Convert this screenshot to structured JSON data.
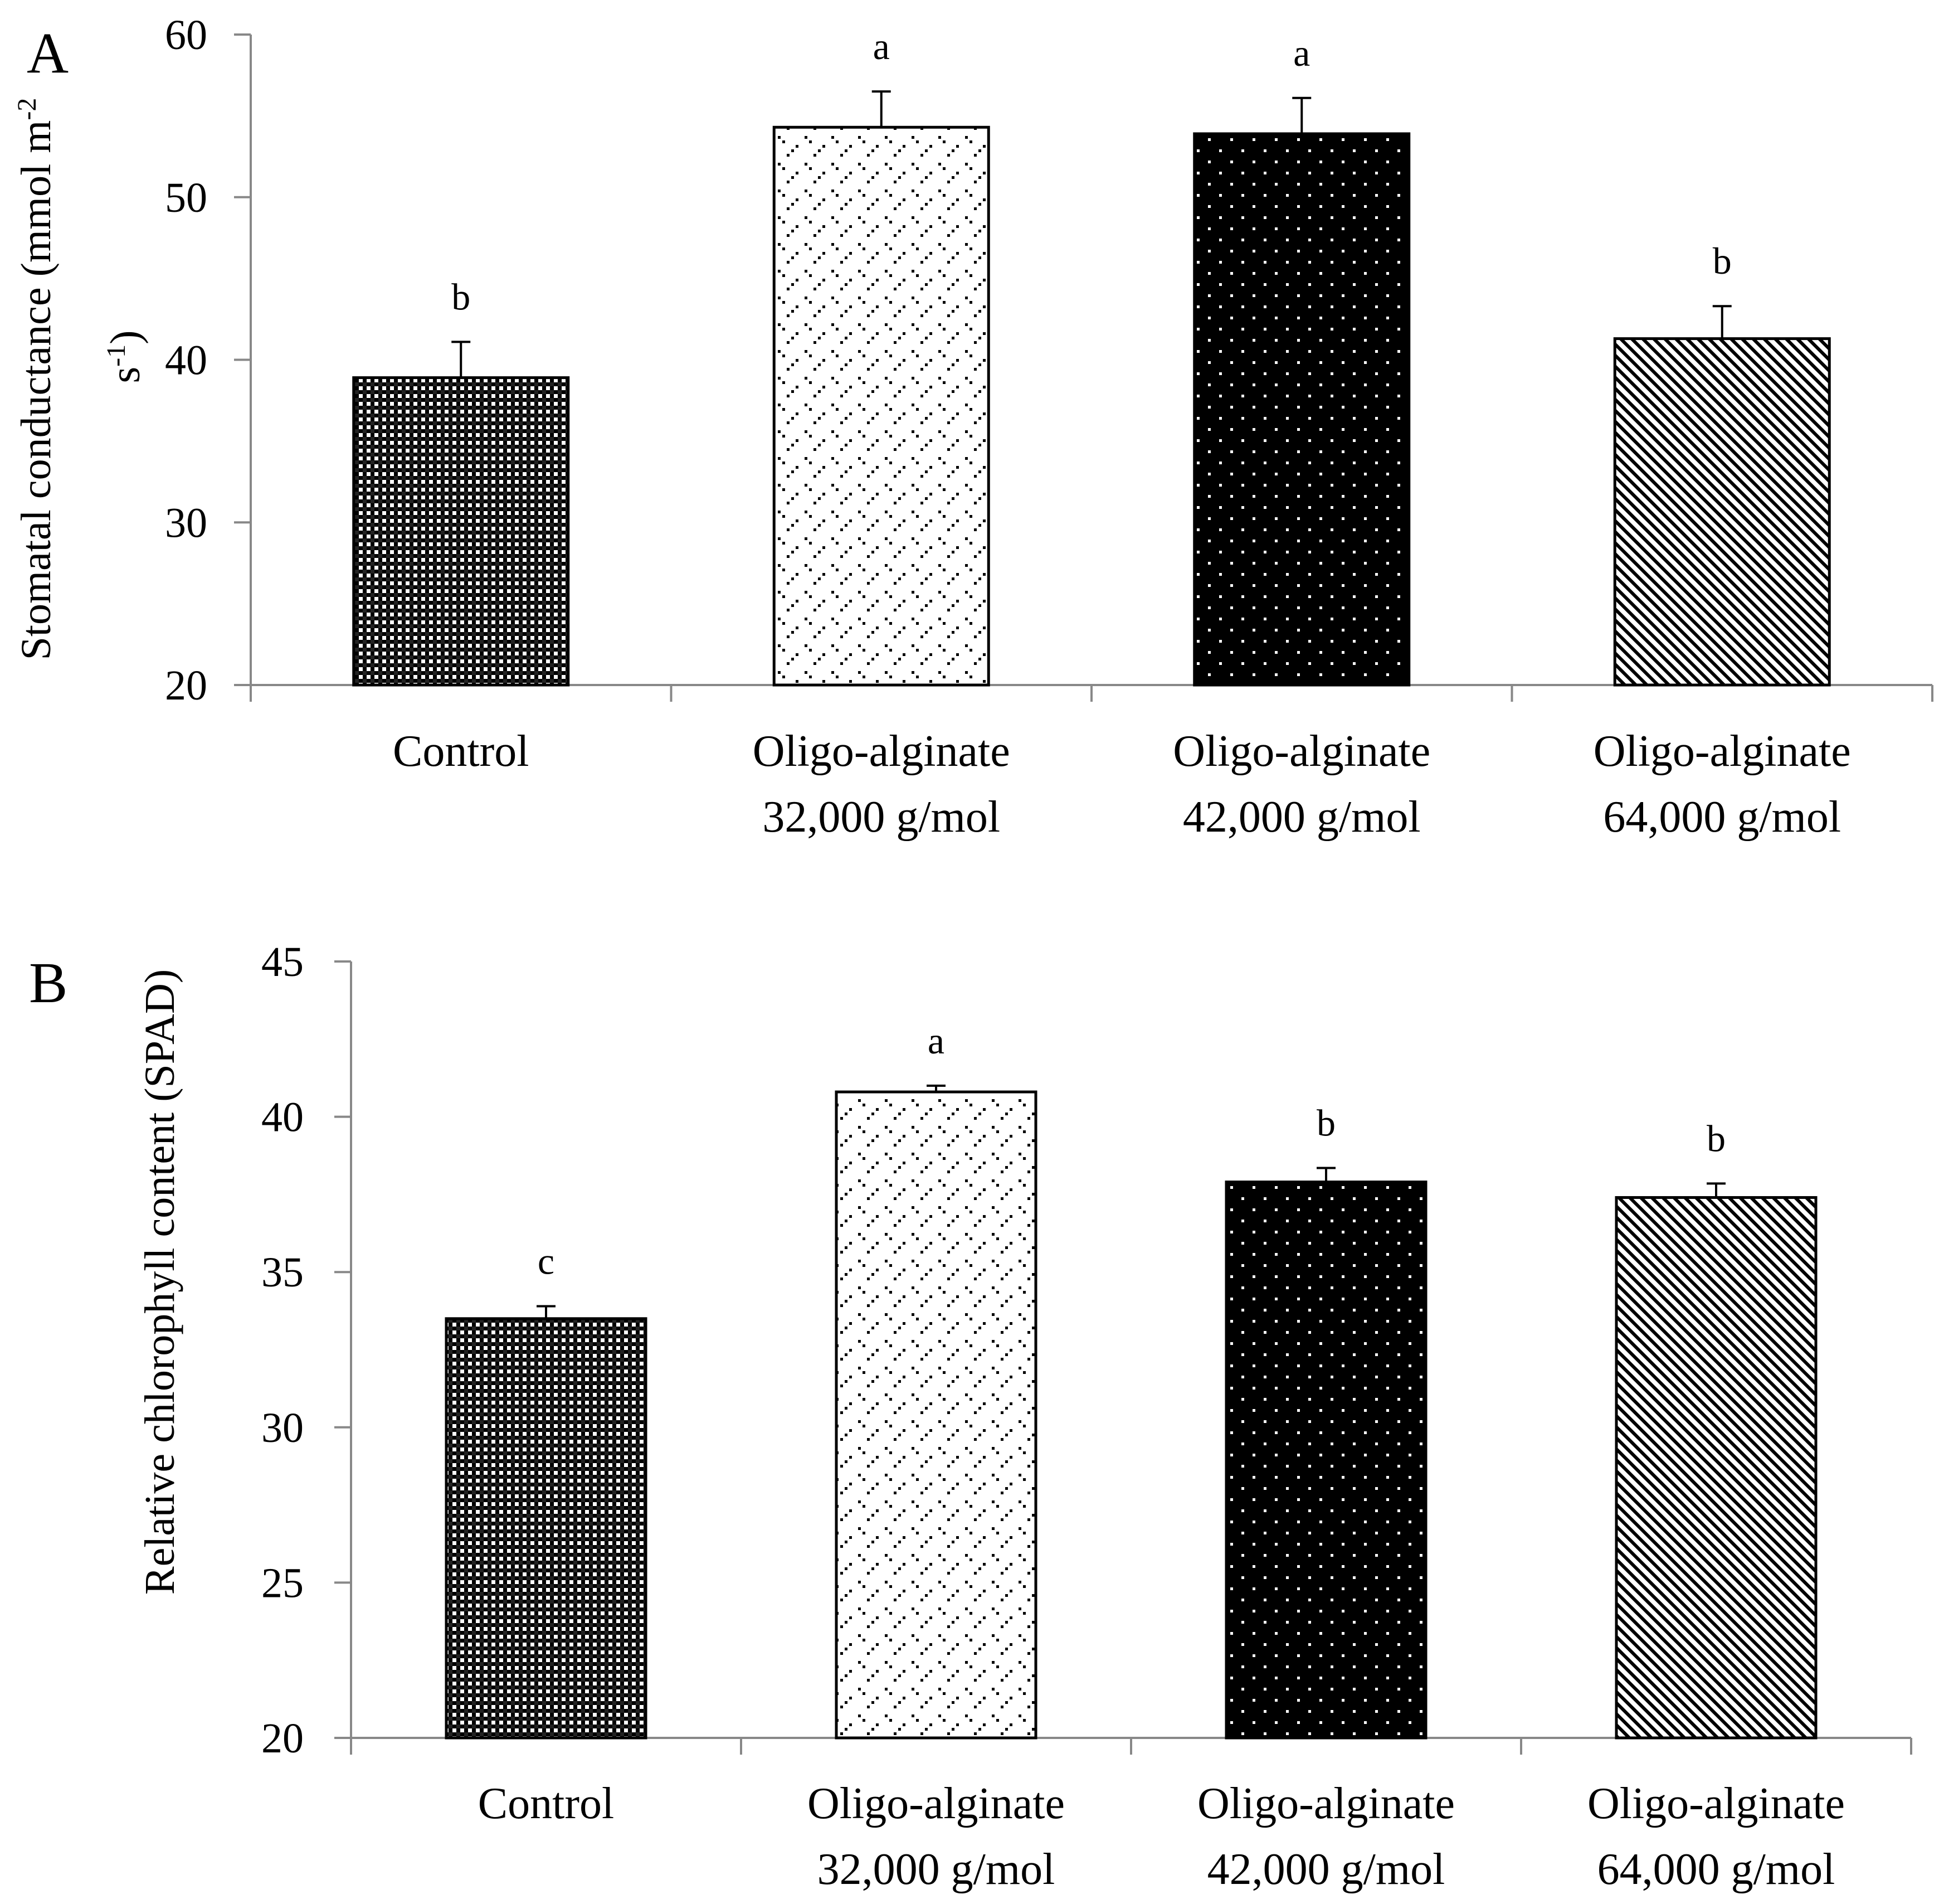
{
  "chart_data": [
    {
      "panel_label": "A",
      "type": "bar",
      "categories": [
        [
          "Control"
        ],
        [
          "Oligo-alginate",
          "32,000 g/mol"
        ],
        [
          "Oligo-alginate",
          "42,000 g/mol"
        ],
        [
          "Oligo-alginate",
          "64,000 g/mol"
        ]
      ],
      "values": [
        38.9,
        54.3,
        53.9,
        41.3
      ],
      "errors": [
        2.2,
        2.2,
        2.2,
        2.0
      ],
      "significance": [
        "b",
        "a",
        "a",
        "b"
      ],
      "ylabel_lines": [
        "Stomatal conductance (mmol  m",
        "s",
        ")"
      ],
      "ylabel_superscripts": [
        "-2",
        "-1"
      ],
      "ylim": [
        20,
        60
      ],
      "yticks": [
        20,
        30,
        40,
        50,
        60
      ],
      "xlabel": "",
      "title": "",
      "grid": false
    },
    {
      "panel_label": "B",
      "type": "bar",
      "categories": [
        [
          "Control"
        ],
        [
          "Oligo-alginate",
          "32,000 g/mol"
        ],
        [
          "Oligo-alginate",
          "42,000 g/mol"
        ],
        [
          "Oligo-alginate",
          "64,000 g/mol"
        ]
      ],
      "values": [
        33.5,
        40.8,
        37.9,
        37.4
      ],
      "errors": [
        0.4,
        0.2,
        0.45,
        0.45
      ],
      "significance": [
        "c",
        "a",
        "b",
        "b"
      ],
      "ylabel_lines": [
        "Relative chlorophyll content (SPAD)"
      ],
      "ylim": [
        20,
        45
      ],
      "yticks": [
        20,
        25,
        30,
        35,
        40,
        45
      ],
      "xlabel": "",
      "title": "",
      "grid": false
    }
  ],
  "bar_fills": [
    "dense-dots",
    "sparse-diamond-dots",
    "black-white-dots",
    "diagonal-hatch"
  ],
  "colors": {
    "ink": "#000000",
    "axis": "#888888",
    "background": "#ffffff"
  }
}
